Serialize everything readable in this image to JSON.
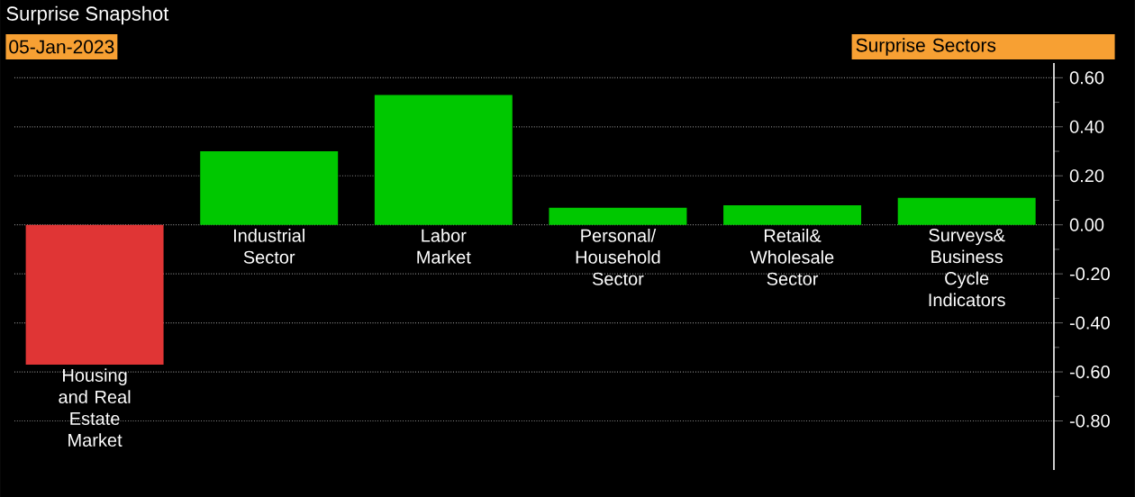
{
  "chart_data": {
    "type": "bar",
    "title": "Surprise Snapshot",
    "subtitle": "05-Jan-2023",
    "annotations": [
      "Surprise Sectors"
    ],
    "categories": [
      "Housing and Real Estate Market",
      "Industrial Sector",
      "Labor Market",
      "Personal/ Household Sector",
      "Retail& Wholesale Sector",
      "Surveys& Business Cycle Indicators"
    ],
    "values": [
      -0.57,
      0.3,
      0.53,
      0.07,
      0.08,
      0.11
    ],
    "colors": [
      "#e03535",
      "#00c800",
      "#00c800",
      "#00c800",
      "#00c800",
      "#00c800"
    ],
    "ylim": [
      -1.0,
      0.66
    ],
    "yticks": [
      {
        "value": 0.6,
        "label": "0.60"
      },
      {
        "value": 0.4,
        "label": "0.40"
      },
      {
        "value": 0.2,
        "label": "0.20"
      },
      {
        "value": 0,
        "label": "0.00"
      },
      {
        "value": -0.2,
        "label": "-0.20"
      },
      {
        "value": -0.4,
        "label": "-0.40"
      },
      {
        "value": -0.6,
        "label": "-0.60"
      },
      {
        "value": -0.8,
        "label": "-0.80"
      }
    ],
    "grid": "y"
  }
}
